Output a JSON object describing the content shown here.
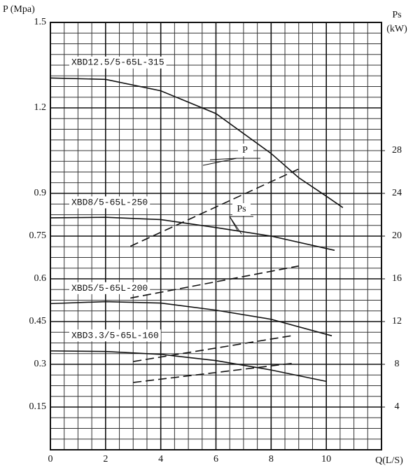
{
  "chart_data": {
    "type": "line",
    "y_label": "P (Mpa)",
    "y2_label": [
      "Ps",
      "(kW)"
    ],
    "x_label": "Q(L/S)",
    "xlim": [
      0,
      12
    ],
    "xticks": [
      0,
      2,
      4,
      6,
      8,
      10
    ],
    "xminor": 0.5,
    "ylim": [
      0,
      1.5
    ],
    "yticks": [
      0.15,
      0.3,
      0.45,
      0.6,
      0.75,
      0.9,
      1.2,
      1.5
    ],
    "y2lim": [
      0,
      40
    ],
    "y2ticks": [
      4,
      8,
      12,
      16,
      20,
      24,
      28
    ],
    "y2minor": 1,
    "grid": true,
    "series": [
      {
        "name": "XBD12.5/5-65L-315",
        "color": "#111",
        "x": [
          0,
          2,
          4,
          6,
          8,
          9,
          10,
          10.6
        ],
        "values": [
          1.305,
          1.3,
          1.26,
          1.18,
          1.04,
          0.955,
          0.89,
          0.85
        ]
      },
      {
        "name": "XBD8/5-65L-250",
        "color": "#111",
        "x": [
          0,
          2,
          4,
          6,
          8,
          10.3
        ],
        "values": [
          0.814,
          0.816,
          0.808,
          0.78,
          0.75,
          0.7
        ]
      },
      {
        "name": "XBD5/5-65L-200",
        "color": "#111",
        "x": [
          0,
          2,
          4,
          6,
          8,
          10.2
        ],
        "values": [
          0.513,
          0.52,
          0.515,
          0.49,
          0.458,
          0.4
        ]
      },
      {
        "name": "XBD3.3/5-65L-160",
        "color": "#111",
        "x": [
          0,
          2,
          4,
          6,
          8,
          10
        ],
        "values": [
          0.347,
          0.345,
          0.335,
          0.313,
          0.28,
          0.24
        ]
      },
      {
        "axis": "y2",
        "dashed": true,
        "color": "#111",
        "x": [
          2.9,
          9.1
        ],
        "values": [
          19.05,
          26.4
        ]
      },
      {
        "axis": "y2",
        "dashed": true,
        "color": "#111",
        "x": [
          2.9,
          9
        ],
        "values": [
          14.2,
          17.2
        ]
      },
      {
        "axis": "y2",
        "dashed": true,
        "color": "#111",
        "x": [
          3,
          8.8
        ],
        "values": [
          8.26,
          10.7
        ]
      },
      {
        "axis": "y2",
        "dashed": true,
        "color": "#111",
        "x": [
          3,
          8.8
        ],
        "values": [
          6.3,
          8.1
        ]
      }
    ],
    "annotations": [
      "P",
      "Ps"
    ]
  }
}
